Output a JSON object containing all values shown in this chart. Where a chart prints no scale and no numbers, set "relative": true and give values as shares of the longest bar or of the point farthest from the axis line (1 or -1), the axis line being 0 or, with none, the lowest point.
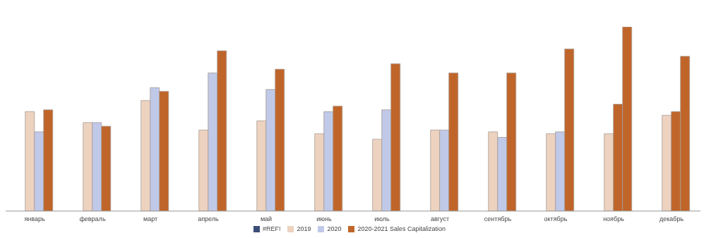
{
  "chart_data": {
    "type": "bar",
    "relative": true,
    "categories": [
      "январь",
      "февраль",
      "март",
      "апрель",
      "май",
      "июнь",
      "июль",
      "август",
      "сентябрь",
      "октябрь",
      "ноябрь",
      "декабрь"
    ],
    "series": [
      {
        "name": "#REF!",
        "color": "#3b4e78",
        "values": [
          null,
          null,
          null,
          null,
          null,
          null,
          null,
          null,
          null,
          null,
          null,
          null
        ]
      },
      {
        "name": "2019",
        "color": "#edd2c0",
        "values": [
          0.54,
          0.48,
          0.6,
          0.44,
          0.49,
          0.42,
          0.39,
          0.44,
          0.43,
          0.42,
          0.42,
          0.52
        ]
      },
      {
        "name": "2020",
        "color": "#c0c9e8",
        "colors": [
          "#c0c9e8",
          "#c0c9e8",
          "#c0c9e8",
          "#c0c9e8",
          "#c0c9e8",
          "#c0c9e8",
          "#c0c9e8",
          "#c0c9e8",
          "#c0c9e8",
          "#c0c9e8",
          "#c0652a",
          "#c0652a"
        ],
        "values": [
          0.43,
          0.48,
          0.67,
          0.75,
          0.66,
          0.54,
          0.55,
          0.44,
          0.4,
          0.43,
          0.58,
          0.54
        ]
      },
      {
        "name": "2020-2021 Sales Capitalization",
        "color": "#c0652a",
        "values": [
          0.55,
          0.46,
          0.65,
          0.87,
          0.77,
          0.57,
          0.8,
          0.75,
          0.75,
          0.88,
          1,
          0.84
        ]
      }
    ],
    "legend": "bottom",
    "grid": false
  }
}
